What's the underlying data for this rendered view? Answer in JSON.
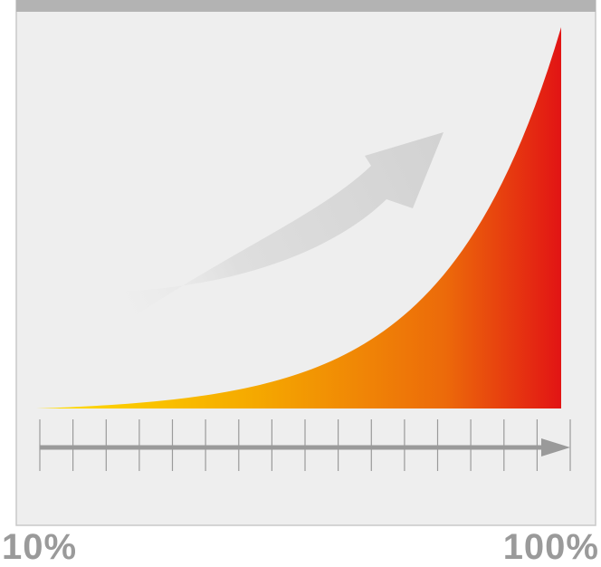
{
  "chart_data": {
    "type": "area",
    "curve": "exponential",
    "x_start_label": "10%",
    "x_end_label": "100%",
    "tick_count": 17,
    "gradient_colors": [
      "#ffe000",
      "#f5a800",
      "#ec6a0a",
      "#e21414"
    ],
    "panel_color": "#eeeeee",
    "header_color": "#b3b3b3",
    "axis_color": "#9a9a9a",
    "background_arrow": "up-trend-arrow",
    "grid": false,
    "legend": "none"
  }
}
